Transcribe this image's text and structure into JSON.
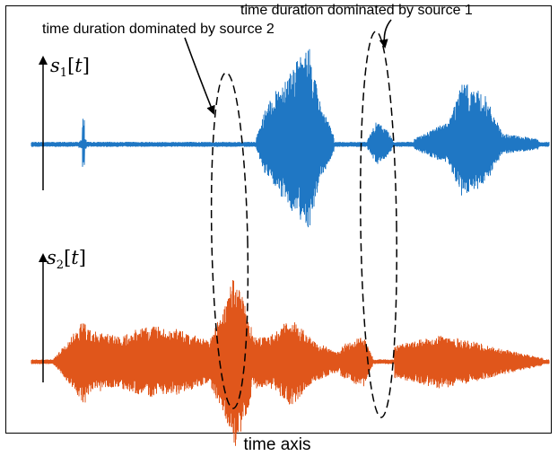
{
  "annotations": {
    "source1_label": "time duration dominated by source 1",
    "source2_label": "time duration dominated by source 2"
  },
  "axis": {
    "x_label": "time axis"
  },
  "signals": {
    "s1": {
      "symbol": "s",
      "subscript": "1",
      "argument": "t",
      "color": "#1f77c4"
    },
    "s2": {
      "symbol": "s",
      "subscript": "2",
      "argument": "t",
      "color": "#e0561b"
    }
  },
  "colors": {
    "frame": "#000000",
    "ellipse": "#000000"
  }
}
